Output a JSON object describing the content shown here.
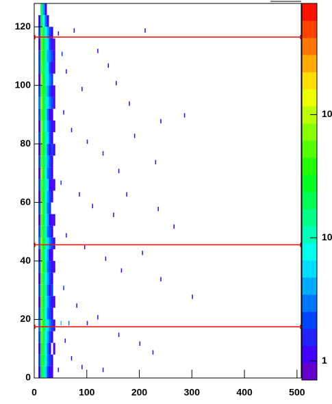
{
  "chart_data": {
    "type": "heatmap",
    "xlim": [
      0,
      508
    ],
    "ylim": [
      0,
      128
    ],
    "xticks": [
      0,
      100,
      200,
      300,
      400,
      500
    ],
    "yticks": [
      0,
      20,
      40,
      60,
      80,
      100,
      120
    ],
    "zlim": [
      0.7,
      800
    ],
    "zlog": true,
    "zticks": [
      1,
      10,
      {
        "value": 100,
        "label": "10²"
      }
    ],
    "palette": [
      "#6600cc",
      "#4400ff",
      "#2222ff",
      "#0044ff",
      "#0077ff",
      "#00aaff",
      "#00ddff",
      "#00ffee",
      "#00ffbb",
      "#00ff88",
      "#00ff55",
      "#00ff22",
      "#22ff00",
      "#55ff00",
      "#88ff00",
      "#bbff00",
      "#eeff00",
      "#ffdd00",
      "#ffaa00",
      "#ff7700",
      "#ff4400",
      "#ff1100"
    ],
    "x_bins": [
      8,
      12,
      16,
      20,
      24,
      28,
      32,
      36,
      40
    ],
    "y_bins": [
      0,
      4,
      8,
      12,
      16,
      20,
      24,
      28,
      32,
      36,
      40,
      44,
      48,
      52,
      56,
      60,
      64,
      68,
      72,
      76,
      80,
      84,
      88,
      92,
      96,
      100,
      104,
      108,
      112,
      116,
      120,
      124,
      128
    ],
    "z": [
      [
        1,
        30,
        15,
        6,
        2,
        1,
        1,
        null
      ],
      [
        2,
        40,
        18,
        8,
        3,
        2,
        1,
        null
      ],
      [
        1,
        35,
        20,
        7,
        3,
        1,
        null,
        1
      ],
      [
        2,
        50,
        22,
        9,
        4,
        2,
        1,
        null
      ],
      [
        3,
        70,
        30,
        12,
        6,
        3,
        2,
        1
      ],
      [
        2,
        55,
        20,
        9,
        3,
        2,
        1,
        null
      ],
      [
        1,
        45,
        25,
        8,
        4,
        2,
        1,
        1
      ],
      [
        2,
        60,
        22,
        10,
        3,
        1,
        2,
        null
      ],
      [
        1,
        50,
        18,
        9,
        4,
        2,
        1,
        null
      ],
      [
        2,
        65,
        24,
        11,
        3,
        2,
        1,
        1
      ],
      [
        1,
        55,
        20,
        8,
        4,
        1,
        1,
        null
      ],
      [
        3,
        70,
        28,
        12,
        5,
        3,
        2,
        1
      ],
      [
        2,
        60,
        22,
        10,
        3,
        2,
        1,
        null
      ],
      [
        1,
        55,
        25,
        9,
        4,
        1,
        1,
        1
      ],
      [
        2,
        65,
        20,
        11,
        3,
        2,
        null,
        null
      ],
      [
        1,
        50,
        24,
        8,
        4,
        2,
        1,
        null
      ],
      [
        2,
        60,
        22,
        10,
        5,
        1,
        1,
        1
      ],
      [
        1,
        70,
        26,
        9,
        3,
        2,
        1,
        null
      ],
      [
        2,
        55,
        20,
        12,
        4,
        2,
        1,
        null
      ],
      [
        1,
        60,
        25,
        10,
        3,
        1,
        2,
        1
      ],
      [
        2,
        75,
        28,
        11,
        5,
        2,
        1,
        null
      ],
      [
        1,
        65,
        22,
        9,
        4,
        2,
        1,
        1
      ],
      [
        2,
        55,
        24,
        12,
        3,
        1,
        1,
        null
      ],
      [
        3,
        70,
        30,
        10,
        5,
        3,
        2,
        1
      ],
      [
        2,
        60,
        25,
        13,
        4,
        2,
        1,
        1
      ],
      [
        1,
        65,
        28,
        11,
        6,
        3,
        2,
        null
      ],
      [
        2,
        55,
        22,
        12,
        5,
        2,
        1,
        1
      ],
      [
        2,
        60,
        26,
        10,
        4,
        3,
        2,
        1
      ],
      [
        1,
        50,
        24,
        11,
        5,
        2,
        1,
        1
      ],
      [
        2,
        45,
        20,
        9,
        4,
        2,
        1,
        null
      ],
      [
        1,
        30,
        8,
        3,
        1,
        null,
        null,
        null
      ],
      [
        null,
        20,
        4,
        1,
        null,
        null,
        null,
        null
      ]
    ],
    "sparse_bin": [
      2,
      1.5
    ],
    "sparse": [
      [
        45,
        117,
        1
      ],
      [
        52,
        110,
        2
      ],
      [
        60,
        104,
        1
      ],
      [
        75,
        118,
        1
      ],
      [
        90,
        98,
        1
      ],
      [
        120,
        111,
        1
      ],
      [
        140,
        106,
        1
      ],
      [
        155,
        100,
        1
      ],
      [
        180,
        93,
        1
      ],
      [
        210,
        118,
        1
      ],
      [
        240,
        87,
        1
      ],
      [
        285,
        89,
        1
      ],
      [
        55,
        90,
        1
      ],
      [
        70,
        84,
        1
      ],
      [
        100,
        80,
        1
      ],
      [
        130,
        76,
        1
      ],
      [
        160,
        70,
        1
      ],
      [
        190,
        82,
        1
      ],
      [
        230,
        73,
        1
      ],
      [
        50,
        66,
        2
      ],
      [
        85,
        62,
        1
      ],
      [
        110,
        58,
        1
      ],
      [
        150,
        55,
        1
      ],
      [
        175,
        62,
        1
      ],
      [
        235,
        57,
        1
      ],
      [
        265,
        51,
        1
      ],
      [
        60,
        48,
        1
      ],
      [
        95,
        44,
        1
      ],
      [
        135,
        40,
        1
      ],
      [
        165,
        36,
        1
      ],
      [
        205,
        42,
        1
      ],
      [
        240,
        33,
        1
      ],
      [
        300,
        27,
        1
      ],
      [
        55,
        30,
        2
      ],
      [
        80,
        24,
        1
      ],
      [
        120,
        20,
        1
      ],
      [
        160,
        14,
        1
      ],
      [
        200,
        11,
        1
      ],
      [
        225,
        8,
        1
      ],
      [
        58,
        12,
        1
      ],
      [
        70,
        6,
        1
      ],
      [
        90,
        3,
        1
      ],
      [
        130,
        2,
        1
      ],
      [
        65,
        18,
        3
      ],
      [
        50,
        18,
        5
      ],
      [
        100,
        18,
        1
      ],
      [
        45,
        2,
        1
      ]
    ],
    "hlines": [
      116.5,
      45.5,
      17.5
    ],
    "hline_color": "#ff0000"
  }
}
